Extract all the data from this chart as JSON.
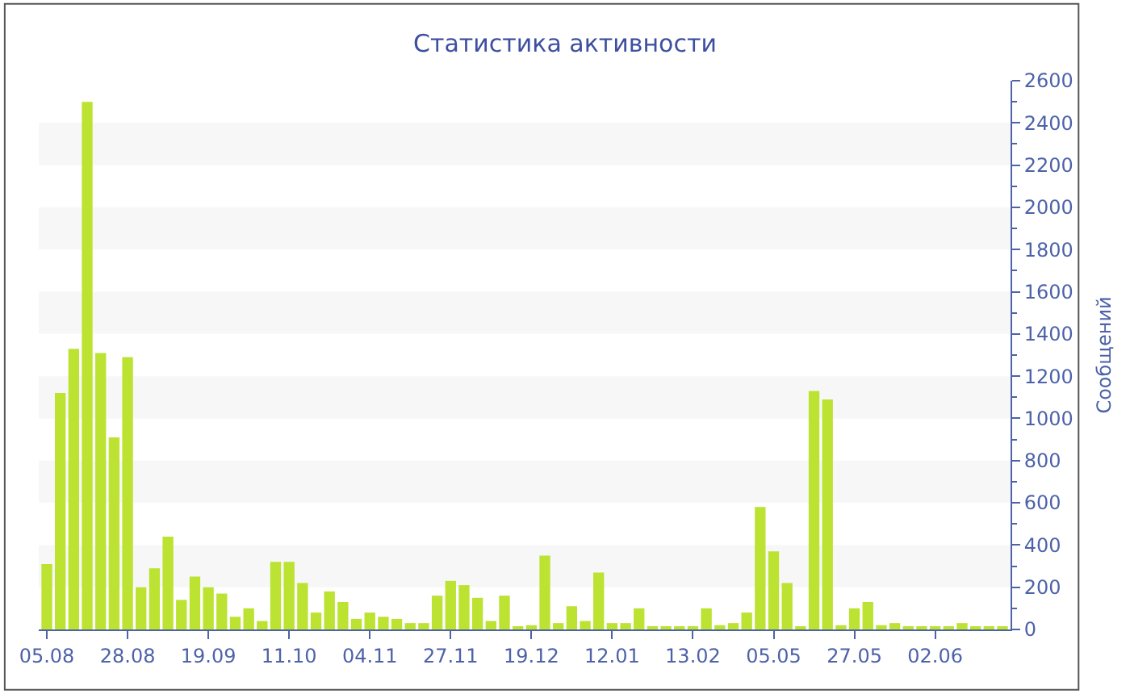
{
  "chart_data": {
    "type": "bar",
    "title": "Статистика активности",
    "ylabel": "Сообщений",
    "categories": [
      "05.08",
      null,
      null,
      null,
      null,
      null,
      "28.08",
      null,
      null,
      null,
      null,
      null,
      "19.09",
      null,
      null,
      null,
      null,
      null,
      "11.10",
      null,
      null,
      null,
      null,
      null,
      "04.11",
      null,
      null,
      null,
      null,
      null,
      "27.11",
      null,
      null,
      null,
      null,
      null,
      "19.12",
      null,
      null,
      null,
      null,
      null,
      "12.01",
      null,
      null,
      null,
      null,
      null,
      "13.02",
      null,
      null,
      null,
      null,
      null,
      "05.05",
      null,
      null,
      null,
      null,
      null,
      "27.05",
      null,
      null,
      null,
      null,
      null,
      "02.06",
      null,
      null,
      null,
      null,
      null
    ],
    "values": [
      310,
      1120,
      1330,
      2500,
      1310,
      910,
      1290,
      200,
      290,
      440,
      140,
      250,
      200,
      170,
      60,
      100,
      40,
      320,
      320,
      220,
      80,
      180,
      130,
      50,
      80,
      60,
      50,
      30,
      30,
      160,
      230,
      210,
      150,
      40,
      160,
      10,
      20,
      350,
      30,
      110,
      40,
      270,
      30,
      30,
      100,
      15,
      15,
      10,
      10,
      100,
      20,
      30,
      80,
      580,
      370,
      220,
      15,
      1130,
      1090,
      20,
      100,
      130,
      20,
      30,
      15,
      10,
      10,
      15,
      30,
      10,
      10,
      10
    ],
    "color": "#bce232",
    "ylim": [
      0,
      2600
    ],
    "yticks": [
      0,
      200,
      400,
      600,
      800,
      1000,
      1200,
      1400,
      1600,
      1800,
      2000,
      2200,
      2400,
      2600
    ],
    "bands": [
      {
        "axis": "y",
        "from": 200,
        "to": 400,
        "color": "#f7f7f7"
      },
      {
        "axis": "y",
        "from": 600,
        "to": 800,
        "color": "#f7f7f7"
      },
      {
        "axis": "y",
        "from": 1000,
        "to": 1200,
        "color": "#f7f7f7"
      },
      {
        "axis": "y",
        "from": 1400,
        "to": 1600,
        "color": "#f7f7f7"
      },
      {
        "axis": "y",
        "from": 1800,
        "to": 2000,
        "color": "#f7f7f7"
      },
      {
        "axis": "y",
        "from": 2200,
        "to": 2400,
        "color": "#f7f7f7"
      }
    ]
  }
}
